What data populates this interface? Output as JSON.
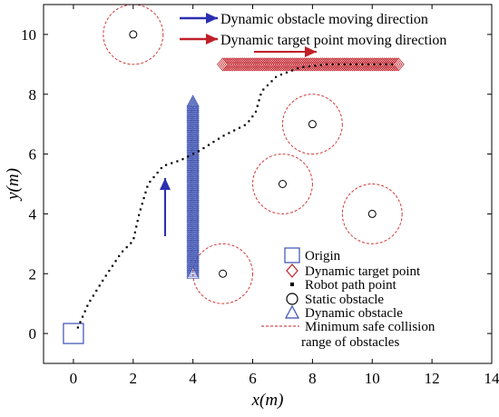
{
  "chart_data": {
    "type": "scatter",
    "xlabel": "x(m)",
    "ylabel": "y(m)",
    "xlim": [
      -1,
      14
    ],
    "ylim": [
      -1,
      11
    ],
    "xticks": [
      "0",
      "2",
      "4",
      "6",
      "8",
      "10",
      "12",
      "14"
    ],
    "yticks": [
      "0",
      "2",
      "4",
      "6",
      "8",
      "10"
    ],
    "xtick_values": [
      0,
      2,
      4,
      6,
      8,
      10,
      12,
      14
    ],
    "ytick_values": [
      0,
      2,
      4,
      6,
      8,
      10
    ],
    "grid": false,
    "origin": {
      "x": 0,
      "y": 0
    },
    "static_obstacles": [
      {
        "x": 2,
        "y": 10,
        "safe_radius": 1.0
      },
      {
        "x": 8,
        "y": 7,
        "safe_radius": 1.0
      },
      {
        "x": 7,
        "y": 5,
        "safe_radius": 1.0
      },
      {
        "x": 10,
        "y": 4,
        "safe_radius": 1.0
      },
      {
        "x": 5,
        "y": 2,
        "safe_radius": 1.0
      }
    ],
    "dynamic_obstacle": {
      "x": 4,
      "y_start": 2,
      "y_end": 7.8
    },
    "dynamic_target": {
      "y": 9,
      "x_start": 5,
      "x_end": 10.9
    },
    "robot_path": [
      {
        "x": 0.15,
        "y": 0.2
      },
      {
        "x": 0.5,
        "y": 1.0
      },
      {
        "x": 1.0,
        "y": 1.8
      },
      {
        "x": 1.6,
        "y": 2.7
      },
      {
        "x": 2.0,
        "y": 3.1
      },
      {
        "x": 2.2,
        "y": 4.0
      },
      {
        "x": 2.5,
        "y": 5.0
      },
      {
        "x": 3.0,
        "y": 5.6
      },
      {
        "x": 3.6,
        "y": 5.8
      },
      {
        "x": 4.2,
        "y": 6.1
      },
      {
        "x": 5.0,
        "y": 6.6
      },
      {
        "x": 5.8,
        "y": 7.0
      },
      {
        "x": 6.1,
        "y": 7.4
      },
      {
        "x": 6.3,
        "y": 8.1
      },
      {
        "x": 6.8,
        "y": 8.6
      },
      {
        "x": 7.6,
        "y": 8.9
      },
      {
        "x": 8.5,
        "y": 9.0
      },
      {
        "x": 9.5,
        "y": 9.0
      },
      {
        "x": 10.8,
        "y": 9.0
      }
    ],
    "annotations": [
      {
        "text": "Dynamic obstacle moving direction",
        "color": "#1f2fb0"
      },
      {
        "text": "Dynamic target point moving direction",
        "color": "#c0202a"
      }
    ],
    "legend": [
      {
        "label": "Origin",
        "marker": "square",
        "color": "#3a4fb0"
      },
      {
        "label": "Dynamic target point",
        "marker": "diamond",
        "color": "#c0202a"
      },
      {
        "label": "Robot path point",
        "marker": "dot",
        "color": "#000000"
      },
      {
        "label": "Static obstacle",
        "marker": "circle",
        "color": "#000000"
      },
      {
        "label": "Dynamic obstacle",
        "marker": "triangle",
        "color": "#3a4fb0"
      },
      {
        "label": "Minimum safe collision range of obstacles",
        "marker": "dashed-line",
        "color": "#c0202a"
      }
    ],
    "colors": {
      "blue": "#2b2fb0",
      "red": "#c0202a",
      "dash_red": "#d23a3a"
    }
  }
}
